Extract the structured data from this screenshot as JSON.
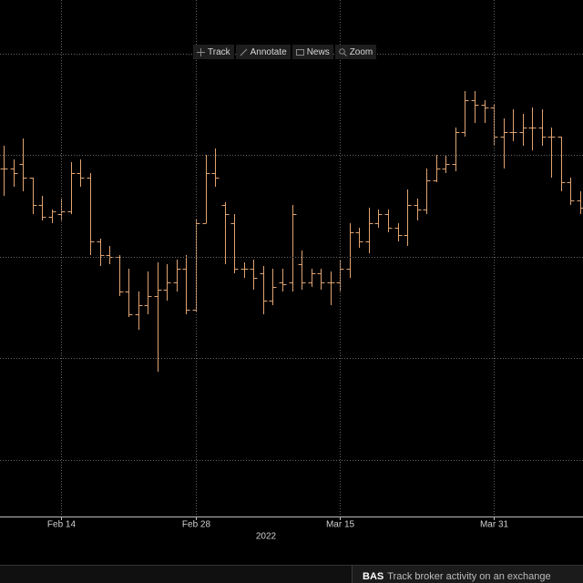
{
  "toolbar": {
    "buttons": [
      "Track",
      "Annotate",
      "News",
      "Zoom"
    ]
  },
  "chart_data": {
    "type": "ohlc",
    "categories": [
      null,
      null,
      null,
      null,
      null,
      null,
      "Feb 14",
      null,
      null,
      null,
      null,
      null,
      null,
      null,
      null,
      null,
      null,
      null,
      null,
      null,
      "Feb 28",
      null,
      null,
      null,
      null,
      null,
      null,
      null,
      null,
      null,
      null,
      null,
      null,
      null,
      null,
      "Mar 15",
      null,
      null,
      null,
      null,
      null,
      null,
      null,
      null,
      null,
      null,
      null,
      null,
      null,
      null,
      null,
      "Mar 31",
      null,
      null,
      null,
      null,
      null,
      null,
      null,
      null,
      null
    ],
    "open": [
      415,
      415,
      420,
      405,
      375,
      362,
      365,
      368,
      410,
      405,
      335,
      320,
      318,
      280,
      255,
      265,
      275,
      282,
      290,
      305,
      260,
      355,
      410,
      375,
      355,
      305,
      305,
      300,
      270,
      290,
      290,
      310,
      290,
      300,
      290,
      290,
      305,
      345,
      335,
      355,
      365,
      350,
      342,
      375,
      370,
      402,
      415,
      420,
      455,
      490,
      485,
      482,
      450,
      455,
      455,
      460,
      460,
      450,
      450,
      400,
      380
    ],
    "high": [
      440,
      425,
      448,
      405,
      385,
      370,
      382,
      422,
      425,
      410,
      338,
      330,
      320,
      305,
      280,
      302,
      312,
      310,
      315,
      320,
      360,
      430,
      437,
      378,
      365,
      312,
      315,
      308,
      305,
      305,
      375,
      325,
      305,
      305,
      302,
      315,
      355,
      350,
      372,
      370,
      370,
      355,
      392,
      382,
      415,
      430,
      430,
      460,
      500,
      500,
      490,
      485,
      470,
      480,
      475,
      482,
      480,
      460,
      450,
      405,
      390
    ],
    "low": [
      385,
      395,
      390,
      365,
      358,
      355,
      358,
      365,
      395,
      320,
      308,
      310,
      275,
      252,
      238,
      255,
      192,
      270,
      280,
      255,
      258,
      355,
      395,
      310,
      300,
      295,
      282,
      255,
      265,
      280,
      280,
      282,
      285,
      282,
      265,
      280,
      295,
      328,
      322,
      350,
      345,
      335,
      330,
      358,
      365,
      400,
      410,
      412,
      450,
      465,
      465,
      440,
      415,
      445,
      440,
      435,
      440,
      405,
      390,
      375,
      365
    ],
    "close": [
      415,
      410,
      405,
      375,
      362,
      368,
      368,
      410,
      405,
      335,
      320,
      318,
      280,
      255,
      265,
      275,
      282,
      290,
      305,
      260,
      355,
      410,
      405,
      365,
      305,
      305,
      295,
      270,
      285,
      288,
      365,
      290,
      300,
      290,
      290,
      305,
      345,
      335,
      355,
      365,
      350,
      342,
      375,
      370,
      402,
      415,
      420,
      455,
      490,
      485,
      482,
      450,
      455,
      455,
      460,
      460,
      450,
      450,
      400,
      380,
      372
    ],
    "color": "#e0a472",
    "ylim": [
      33,
      600
    ],
    "grid_lines": [
      541,
      430,
      318,
      207,
      95
    ],
    "grid": true,
    "x_label": "2022"
  },
  "footer": {
    "code": "BAS",
    "text": "Track broker activity on an exchange"
  }
}
